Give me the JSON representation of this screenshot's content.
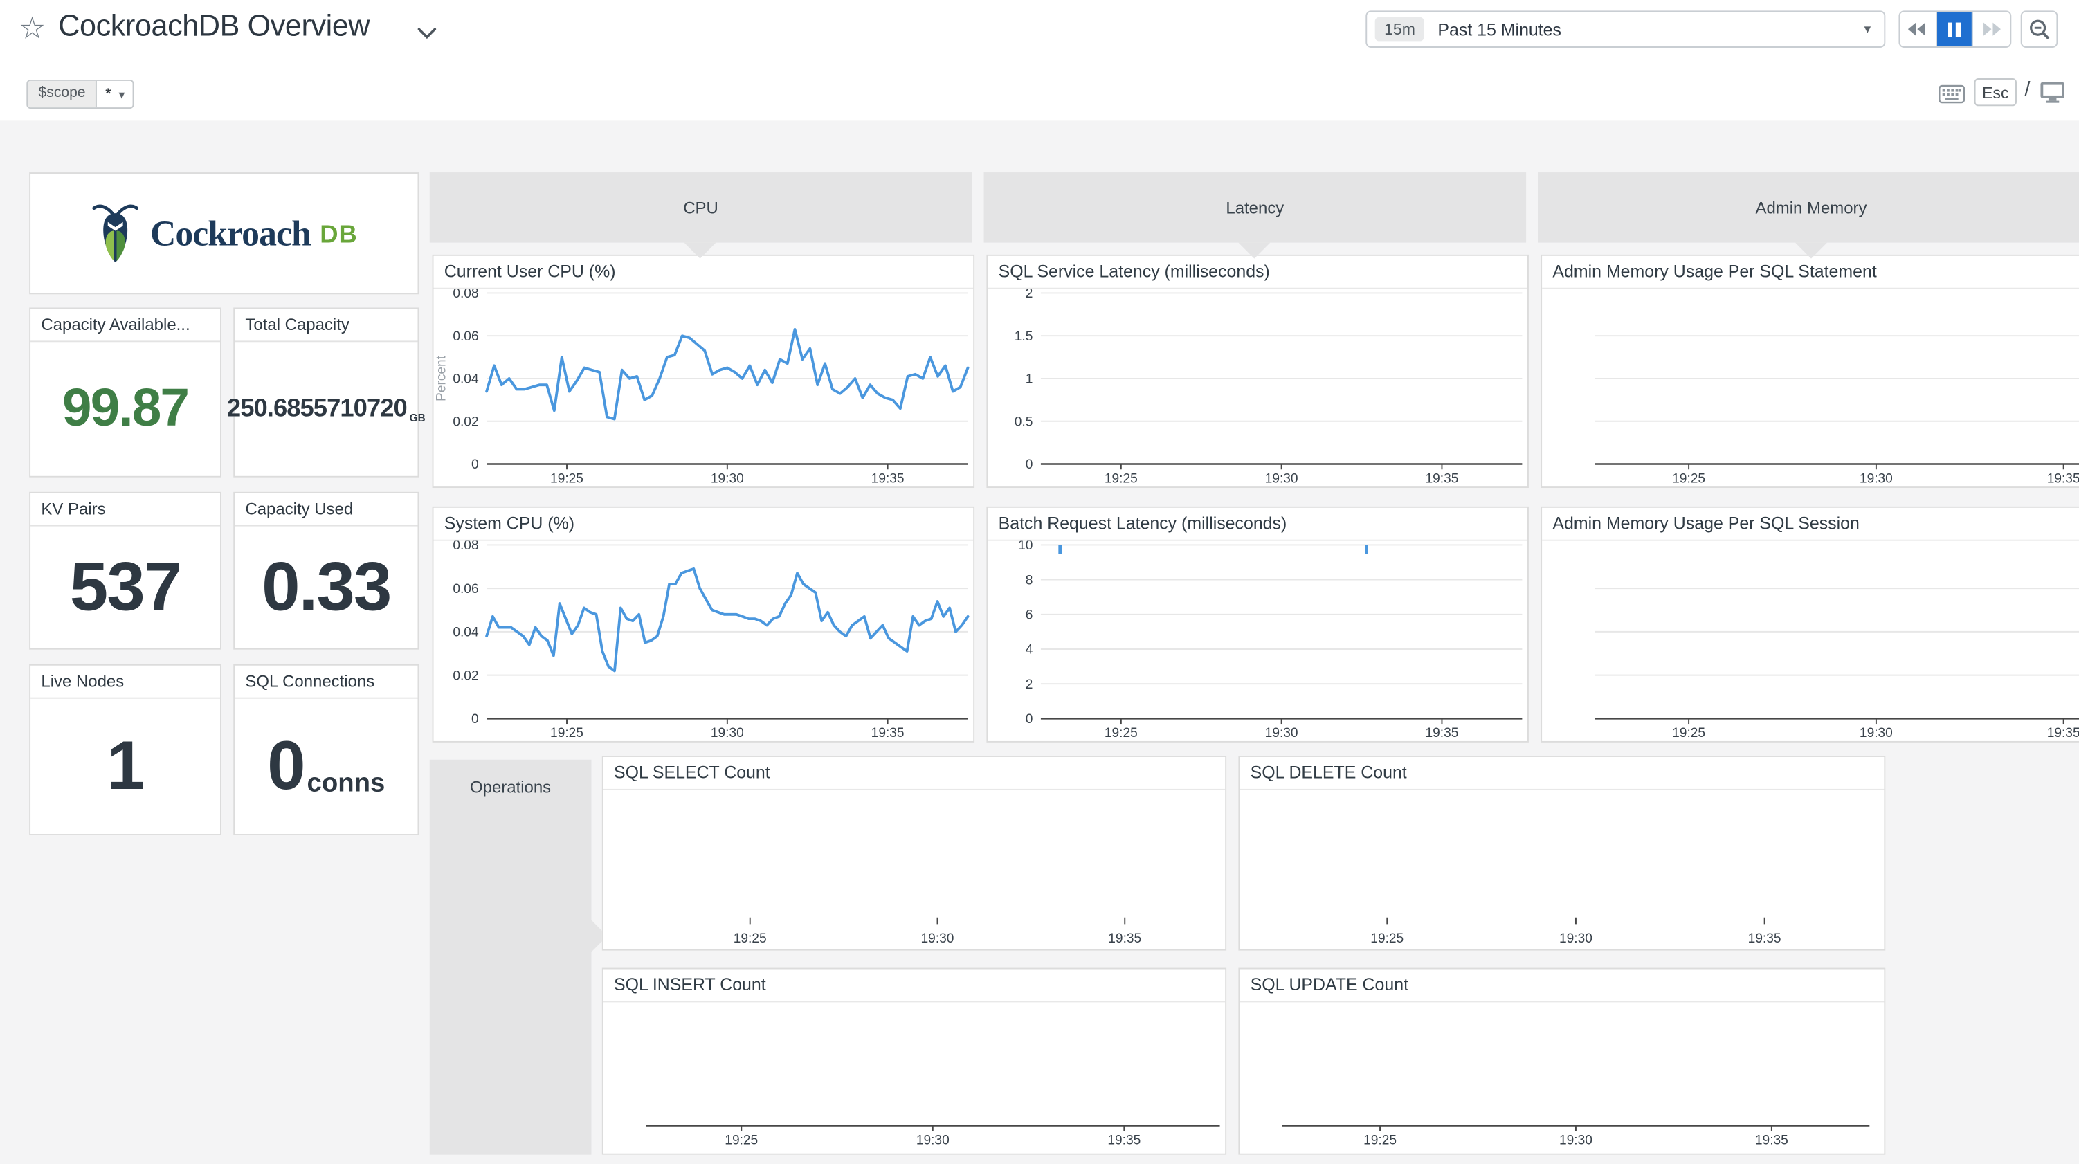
{
  "colors": {
    "line": "#4a97de",
    "accent_blue": "#1f6fd0",
    "green_value": "#3f7e46",
    "logo_navy": "#1d3a5a",
    "logo_green": "#69a63a"
  },
  "header": {
    "title": "CockroachDB Overview",
    "time_badge": "15m",
    "time_label": "Past 15 Minutes",
    "scope_key": "$scope",
    "scope_value": "*",
    "esc": "Esc",
    "slash": "/"
  },
  "logo": {
    "primary": "Cockroach",
    "secondary": "DB"
  },
  "groups": {
    "cpu": "CPU",
    "latency": "Latency",
    "admin": "Admin Memory",
    "operations": "Operations"
  },
  "stat_cards": [
    {
      "title": "Capacity Available...",
      "value": "99.87"
    },
    {
      "title": "Total Capacity",
      "value": "250.6855710720",
      "unit": "GB"
    },
    {
      "title": "KV Pairs",
      "value": "537"
    },
    {
      "title": "Capacity Used",
      "value": "0.33"
    },
    {
      "title": "Live Nodes",
      "value": "1"
    },
    {
      "title": "SQL Connections",
      "value": "0",
      "unit": "conns"
    }
  ],
  "chart_data": [
    {
      "id": "current_user_cpu",
      "type": "line",
      "title": "Current User CPU (%)",
      "ylabel": "Percent",
      "ylim": [
        0,
        0.08
      ],
      "xlim": [
        0,
        15
      ],
      "grid": true,
      "axis": true,
      "yticks": [
        {
          "v": 0,
          "label": "0"
        },
        {
          "v": 0.02,
          "label": "0.02"
        },
        {
          "v": 0.04,
          "label": "0.04"
        },
        {
          "v": 0.06,
          "label": "0.06"
        },
        {
          "v": 0.08,
          "label": "0.08"
        }
      ],
      "xticks": [
        {
          "v": 2.5,
          "label": "19:25"
        },
        {
          "v": 7.5,
          "label": "19:30"
        },
        {
          "v": 12.5,
          "label": "19:35"
        }
      ],
      "values": [
        0.034,
        0.046,
        0.037,
        0.04,
        0.035,
        0.035,
        0.036,
        0.037,
        0.037,
        0.025,
        0.05,
        0.034,
        0.039,
        0.045,
        0.044,
        0.043,
        0.022,
        0.021,
        0.044,
        0.04,
        0.041,
        0.03,
        0.032,
        0.04,
        0.05,
        0.051,
        0.06,
        0.059,
        0.056,
        0.053,
        0.042,
        0.044,
        0.045,
        0.043,
        0.04,
        0.046,
        0.037,
        0.044,
        0.038,
        0.049,
        0.047,
        0.063,
        0.049,
        0.054,
        0.037,
        0.047,
        0.035,
        0.033,
        0.036,
        0.04,
        0.031,
        0.037,
        0.033,
        0.031,
        0.03,
        0.026,
        0.041,
        0.042,
        0.04,
        0.05,
        0.041,
        0.046,
        0.034,
        0.036,
        0.045
      ]
    },
    {
      "id": "system_cpu",
      "type": "line",
      "title": "System CPU (%)",
      "ylim": [
        0,
        0.08
      ],
      "xlim": [
        0,
        15
      ],
      "grid": true,
      "axis": true,
      "yticks": [
        {
          "v": 0,
          "label": "0"
        },
        {
          "v": 0.02,
          "label": "0.02"
        },
        {
          "v": 0.04,
          "label": "0.04"
        },
        {
          "v": 0.06,
          "label": "0.06"
        },
        {
          "v": 0.08,
          "label": "0.08"
        }
      ],
      "xticks": [
        {
          "v": 2.5,
          "label": "19:25"
        },
        {
          "v": 7.5,
          "label": "19:30"
        },
        {
          "v": 12.5,
          "label": "19:35"
        }
      ],
      "values": [
        0.038,
        0.047,
        0.042,
        0.042,
        0.042,
        0.04,
        0.038,
        0.034,
        0.042,
        0.038,
        0.036,
        0.029,
        0.053,
        0.046,
        0.039,
        0.043,
        0.051,
        0.049,
        0.048,
        0.031,
        0.024,
        0.022,
        0.051,
        0.046,
        0.045,
        0.048,
        0.035,
        0.036,
        0.038,
        0.047,
        0.062,
        0.062,
        0.067,
        0.068,
        0.069,
        0.06,
        0.055,
        0.05,
        0.049,
        0.048,
        0.048,
        0.048,
        0.047,
        0.046,
        0.046,
        0.045,
        0.043,
        0.046,
        0.047,
        0.053,
        0.057,
        0.067,
        0.062,
        0.06,
        0.058,
        0.045,
        0.049,
        0.043,
        0.04,
        0.038,
        0.043,
        0.045,
        0.047,
        0.037,
        0.04,
        0.043,
        0.037,
        0.035,
        0.033,
        0.031,
        0.047,
        0.043,
        0.045,
        0.046,
        0.054,
        0.047,
        0.051,
        0.04,
        0.043,
        0.047
      ]
    },
    {
      "id": "sql_service_latency",
      "type": "line",
      "title": "SQL Service Latency (milliseconds)",
      "ylim": [
        0,
        2
      ],
      "xlim": [
        0,
        15
      ],
      "grid": true,
      "axis": true,
      "yticks": [
        {
          "v": 0,
          "label": "0"
        },
        {
          "v": 0.5,
          "label": "0.5"
        },
        {
          "v": 1,
          "label": "1"
        },
        {
          "v": 1.5,
          "label": "1.5"
        },
        {
          "v": 2,
          "label": "2"
        }
      ],
      "xticks": [
        {
          "v": 2.5,
          "label": "19:25"
        },
        {
          "v": 7.5,
          "label": "19:30"
        },
        {
          "v": 12.5,
          "label": "19:35"
        }
      ],
      "values": []
    },
    {
      "id": "batch_request_latency",
      "type": "line",
      "title": "Batch Request Latency (milliseconds)",
      "ylim": [
        0,
        10
      ],
      "xlim": [
        0,
        15
      ],
      "grid": true,
      "axis": true,
      "yticks": [
        {
          "v": 0,
          "label": "0"
        },
        {
          "v": 2,
          "label": "2"
        },
        {
          "v": 4,
          "label": "4"
        },
        {
          "v": 6,
          "label": "6"
        },
        {
          "v": 8,
          "label": "8"
        },
        {
          "v": 10,
          "label": "10"
        }
      ],
      "xticks": [
        {
          "v": 2.5,
          "label": "19:25"
        },
        {
          "v": 7.5,
          "label": "19:30"
        },
        {
          "v": 12.5,
          "label": "19:35"
        }
      ],
      "values": [],
      "marks": [
        {
          "x": 0.6,
          "y1": 10,
          "y2": 9.5
        },
        {
          "x": 10.15,
          "y1": 10,
          "y2": 9.5
        }
      ]
    },
    {
      "id": "admin_mem_statement",
      "type": "line",
      "title": "Admin Memory Usage Per SQL Statement",
      "ylim": [
        0,
        1
      ],
      "xlim": [
        0,
        15
      ],
      "grid": true,
      "axis": true,
      "yticks": [
        {
          "v": 0.25
        },
        {
          "v": 0.5
        },
        {
          "v": 0.75
        }
      ],
      "xticks": [
        {
          "v": 2.5,
          "label": "19:25"
        },
        {
          "v": 7.5,
          "label": "19:30"
        },
        {
          "v": 12.5,
          "label": "19:35"
        }
      ],
      "values": []
    },
    {
      "id": "admin_mem_session",
      "type": "line",
      "title": "Admin Memory Usage Per SQL Session",
      "ylim": [
        0,
        1
      ],
      "xlim": [
        0,
        15
      ],
      "grid": true,
      "axis": true,
      "yticks": [
        {
          "v": 0.25
        },
        {
          "v": 0.5
        },
        {
          "v": 0.75
        }
      ],
      "xticks": [
        {
          "v": 2.5,
          "label": "19:25"
        },
        {
          "v": 7.5,
          "label": "19:30"
        },
        {
          "v": 12.5,
          "label": "19:35"
        }
      ],
      "values": []
    },
    {
      "id": "sql_select_count",
      "type": "line",
      "title": "SQL SELECT Count",
      "ylim": [
        0,
        1
      ],
      "xlim": [
        0,
        15
      ],
      "grid": false,
      "axis": false,
      "yticks": [],
      "xticks": [
        {
          "v": 2.5,
          "label": "19:25"
        },
        {
          "v": 7.5,
          "label": "19:30"
        },
        {
          "v": 12.5,
          "label": "19:35"
        }
      ],
      "values": []
    },
    {
      "id": "sql_delete_count",
      "type": "line",
      "title": "SQL DELETE Count",
      "ylim": [
        0,
        1
      ],
      "xlim": [
        0,
        15
      ],
      "grid": false,
      "axis": false,
      "yticks": [],
      "xticks": [
        {
          "v": 2.5,
          "label": "19:25"
        },
        {
          "v": 7.5,
          "label": "19:30"
        },
        {
          "v": 12.5,
          "label": "19:35"
        }
      ],
      "values": []
    },
    {
      "id": "sql_insert_count",
      "type": "line",
      "title": "SQL INSERT Count",
      "ylim": [
        0,
        1
      ],
      "xlim": [
        0,
        15
      ],
      "grid": false,
      "axis": true,
      "yticks": [],
      "xticks": [
        {
          "v": 2.5,
          "label": "19:25"
        },
        {
          "v": 7.5,
          "label": "19:30"
        },
        {
          "v": 12.5,
          "label": "19:35"
        }
      ],
      "values": []
    },
    {
      "id": "sql_update_count",
      "type": "line",
      "title": "SQL UPDATE Count",
      "ylim": [
        0,
        1
      ],
      "xlim": [
        0,
        15
      ],
      "grid": false,
      "axis": true,
      "yticks": [],
      "xticks": [
        {
          "v": 2.5,
          "label": "19:25"
        },
        {
          "v": 7.5,
          "label": "19:30"
        },
        {
          "v": 12.5,
          "label": "19:35"
        }
      ],
      "values": []
    }
  ]
}
